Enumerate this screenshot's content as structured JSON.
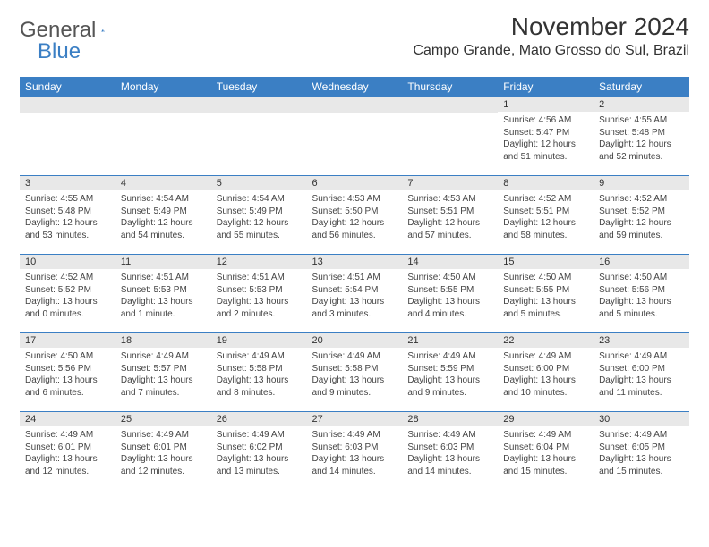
{
  "logo": {
    "text1": "General",
    "text2": "Blue"
  },
  "title": "November 2024",
  "location": "Campo Grande, Mato Grosso do Sul, Brazil",
  "colors": {
    "header_bg": "#3b7fc4",
    "header_text": "#ffffff",
    "daynum_bg": "#e8e8e8",
    "text": "#444444",
    "row_border": "#3b7fc4",
    "page_bg": "#ffffff"
  },
  "typography": {
    "title_fontsize": 28,
    "location_fontsize": 16,
    "dayheader_fontsize": 12,
    "daynum_fontsize": 11,
    "cell_fontsize": 10
  },
  "days_of_week": [
    "Sunday",
    "Monday",
    "Tuesday",
    "Wednesday",
    "Thursday",
    "Friday",
    "Saturday"
  ],
  "weeks": [
    [
      null,
      null,
      null,
      null,
      null,
      {
        "n": "1",
        "sunrise": "4:56 AM",
        "sunset": "5:47 PM",
        "daylight": "12 hours and 51 minutes."
      },
      {
        "n": "2",
        "sunrise": "4:55 AM",
        "sunset": "5:48 PM",
        "daylight": "12 hours and 52 minutes."
      }
    ],
    [
      {
        "n": "3",
        "sunrise": "4:55 AM",
        "sunset": "5:48 PM",
        "daylight": "12 hours and 53 minutes."
      },
      {
        "n": "4",
        "sunrise": "4:54 AM",
        "sunset": "5:49 PM",
        "daylight": "12 hours and 54 minutes."
      },
      {
        "n": "5",
        "sunrise": "4:54 AM",
        "sunset": "5:49 PM",
        "daylight": "12 hours and 55 minutes."
      },
      {
        "n": "6",
        "sunrise": "4:53 AM",
        "sunset": "5:50 PM",
        "daylight": "12 hours and 56 minutes."
      },
      {
        "n": "7",
        "sunrise": "4:53 AM",
        "sunset": "5:51 PM",
        "daylight": "12 hours and 57 minutes."
      },
      {
        "n": "8",
        "sunrise": "4:52 AM",
        "sunset": "5:51 PM",
        "daylight": "12 hours and 58 minutes."
      },
      {
        "n": "9",
        "sunrise": "4:52 AM",
        "sunset": "5:52 PM",
        "daylight": "12 hours and 59 minutes."
      }
    ],
    [
      {
        "n": "10",
        "sunrise": "4:52 AM",
        "sunset": "5:52 PM",
        "daylight": "13 hours and 0 minutes."
      },
      {
        "n": "11",
        "sunrise": "4:51 AM",
        "sunset": "5:53 PM",
        "daylight": "13 hours and 1 minute."
      },
      {
        "n": "12",
        "sunrise": "4:51 AM",
        "sunset": "5:53 PM",
        "daylight": "13 hours and 2 minutes."
      },
      {
        "n": "13",
        "sunrise": "4:51 AM",
        "sunset": "5:54 PM",
        "daylight": "13 hours and 3 minutes."
      },
      {
        "n": "14",
        "sunrise": "4:50 AM",
        "sunset": "5:55 PM",
        "daylight": "13 hours and 4 minutes."
      },
      {
        "n": "15",
        "sunrise": "4:50 AM",
        "sunset": "5:55 PM",
        "daylight": "13 hours and 5 minutes."
      },
      {
        "n": "16",
        "sunrise": "4:50 AM",
        "sunset": "5:56 PM",
        "daylight": "13 hours and 5 minutes."
      }
    ],
    [
      {
        "n": "17",
        "sunrise": "4:50 AM",
        "sunset": "5:56 PM",
        "daylight": "13 hours and 6 minutes."
      },
      {
        "n": "18",
        "sunrise": "4:49 AM",
        "sunset": "5:57 PM",
        "daylight": "13 hours and 7 minutes."
      },
      {
        "n": "19",
        "sunrise": "4:49 AM",
        "sunset": "5:58 PM",
        "daylight": "13 hours and 8 minutes."
      },
      {
        "n": "20",
        "sunrise": "4:49 AM",
        "sunset": "5:58 PM",
        "daylight": "13 hours and 9 minutes."
      },
      {
        "n": "21",
        "sunrise": "4:49 AM",
        "sunset": "5:59 PM",
        "daylight": "13 hours and 9 minutes."
      },
      {
        "n": "22",
        "sunrise": "4:49 AM",
        "sunset": "6:00 PM",
        "daylight": "13 hours and 10 minutes."
      },
      {
        "n": "23",
        "sunrise": "4:49 AM",
        "sunset": "6:00 PM",
        "daylight": "13 hours and 11 minutes."
      }
    ],
    [
      {
        "n": "24",
        "sunrise": "4:49 AM",
        "sunset": "6:01 PM",
        "daylight": "13 hours and 12 minutes."
      },
      {
        "n": "25",
        "sunrise": "4:49 AM",
        "sunset": "6:01 PM",
        "daylight": "13 hours and 12 minutes."
      },
      {
        "n": "26",
        "sunrise": "4:49 AM",
        "sunset": "6:02 PM",
        "daylight": "13 hours and 13 minutes."
      },
      {
        "n": "27",
        "sunrise": "4:49 AM",
        "sunset": "6:03 PM",
        "daylight": "13 hours and 14 minutes."
      },
      {
        "n": "28",
        "sunrise": "4:49 AM",
        "sunset": "6:03 PM",
        "daylight": "13 hours and 14 minutes."
      },
      {
        "n": "29",
        "sunrise": "4:49 AM",
        "sunset": "6:04 PM",
        "daylight": "13 hours and 15 minutes."
      },
      {
        "n": "30",
        "sunrise": "4:49 AM",
        "sunset": "6:05 PM",
        "daylight": "13 hours and 15 minutes."
      }
    ]
  ],
  "labels": {
    "sunrise": "Sunrise:",
    "sunset": "Sunset:",
    "daylight": "Daylight:"
  }
}
